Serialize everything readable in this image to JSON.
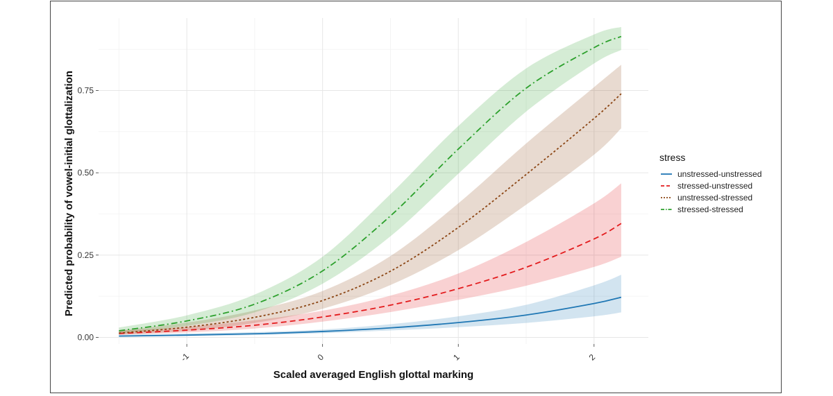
{
  "chart_data": {
    "type": "line",
    "title": "",
    "xlabel": "Scaled averaged English glottal marking",
    "ylabel": "Predicted probability of vowel-initial glottalization",
    "xlim": [
      -1.65,
      2.4
    ],
    "ylim": [
      -0.02,
      0.97
    ],
    "x_ticks": [
      -1,
      0,
      1,
      2
    ],
    "x_tick_labels": [
      "-1",
      "0",
      "1",
      "2"
    ],
    "y_ticks": [
      0,
      0.25,
      0.5,
      0.75
    ],
    "y_tick_labels": [
      "0.00",
      "0.25",
      "0.50",
      "0.75"
    ],
    "grid": true,
    "legend": {
      "title": "stress",
      "position": "right"
    },
    "x": [
      -1.5,
      -1.0,
      -0.5,
      0.0,
      0.5,
      1.0,
      1.5,
      2.0,
      2.2
    ],
    "series": [
      {
        "name": "unstressed-unstressed",
        "color": "#1f77b4",
        "dash": "solid",
        "values": [
          0.004,
          0.007,
          0.011,
          0.018,
          0.029,
          0.045,
          0.068,
          0.103,
          0.122
        ],
        "lower": [
          0.002,
          0.004,
          0.007,
          0.013,
          0.021,
          0.031,
          0.044,
          0.064,
          0.076
        ],
        "upper": [
          0.008,
          0.012,
          0.016,
          0.024,
          0.04,
          0.064,
          0.099,
          0.158,
          0.19
        ]
      },
      {
        "name": "stressed-unstressed",
        "color": "#e31a1c",
        "dash": "dashed",
        "values": [
          0.012,
          0.022,
          0.037,
          0.062,
          0.098,
          0.148,
          0.213,
          0.299,
          0.346
        ],
        "lower": [
          0.008,
          0.015,
          0.027,
          0.048,
          0.077,
          0.114,
          0.157,
          0.214,
          0.245
        ],
        "upper": [
          0.02,
          0.032,
          0.052,
          0.081,
          0.127,
          0.194,
          0.29,
          0.407,
          0.468
        ]
      },
      {
        "name": "unstressed-stressed",
        "color": "#8b4513",
        "dash": "dotted",
        "values": [
          0.013,
          0.031,
          0.061,
          0.112,
          0.201,
          0.334,
          0.495,
          0.665,
          0.74
        ],
        "lower": [
          0.008,
          0.02,
          0.044,
          0.087,
          0.159,
          0.265,
          0.403,
          0.555,
          0.635
        ],
        "upper": [
          0.021,
          0.045,
          0.082,
          0.141,
          0.247,
          0.407,
          0.589,
          0.76,
          0.828
        ]
      },
      {
        "name": "stressed-stressed",
        "color": "#2ca02c",
        "dash": "dotdash",
        "values": [
          0.02,
          0.05,
          0.101,
          0.202,
          0.369,
          0.572,
          0.757,
          0.88,
          0.914
        ],
        "lower": [
          0.012,
          0.035,
          0.076,
          0.163,
          0.307,
          0.497,
          0.686,
          0.832,
          0.873
        ],
        "upper": [
          0.03,
          0.067,
          0.13,
          0.245,
          0.435,
          0.642,
          0.817,
          0.92,
          0.943
        ]
      }
    ]
  }
}
